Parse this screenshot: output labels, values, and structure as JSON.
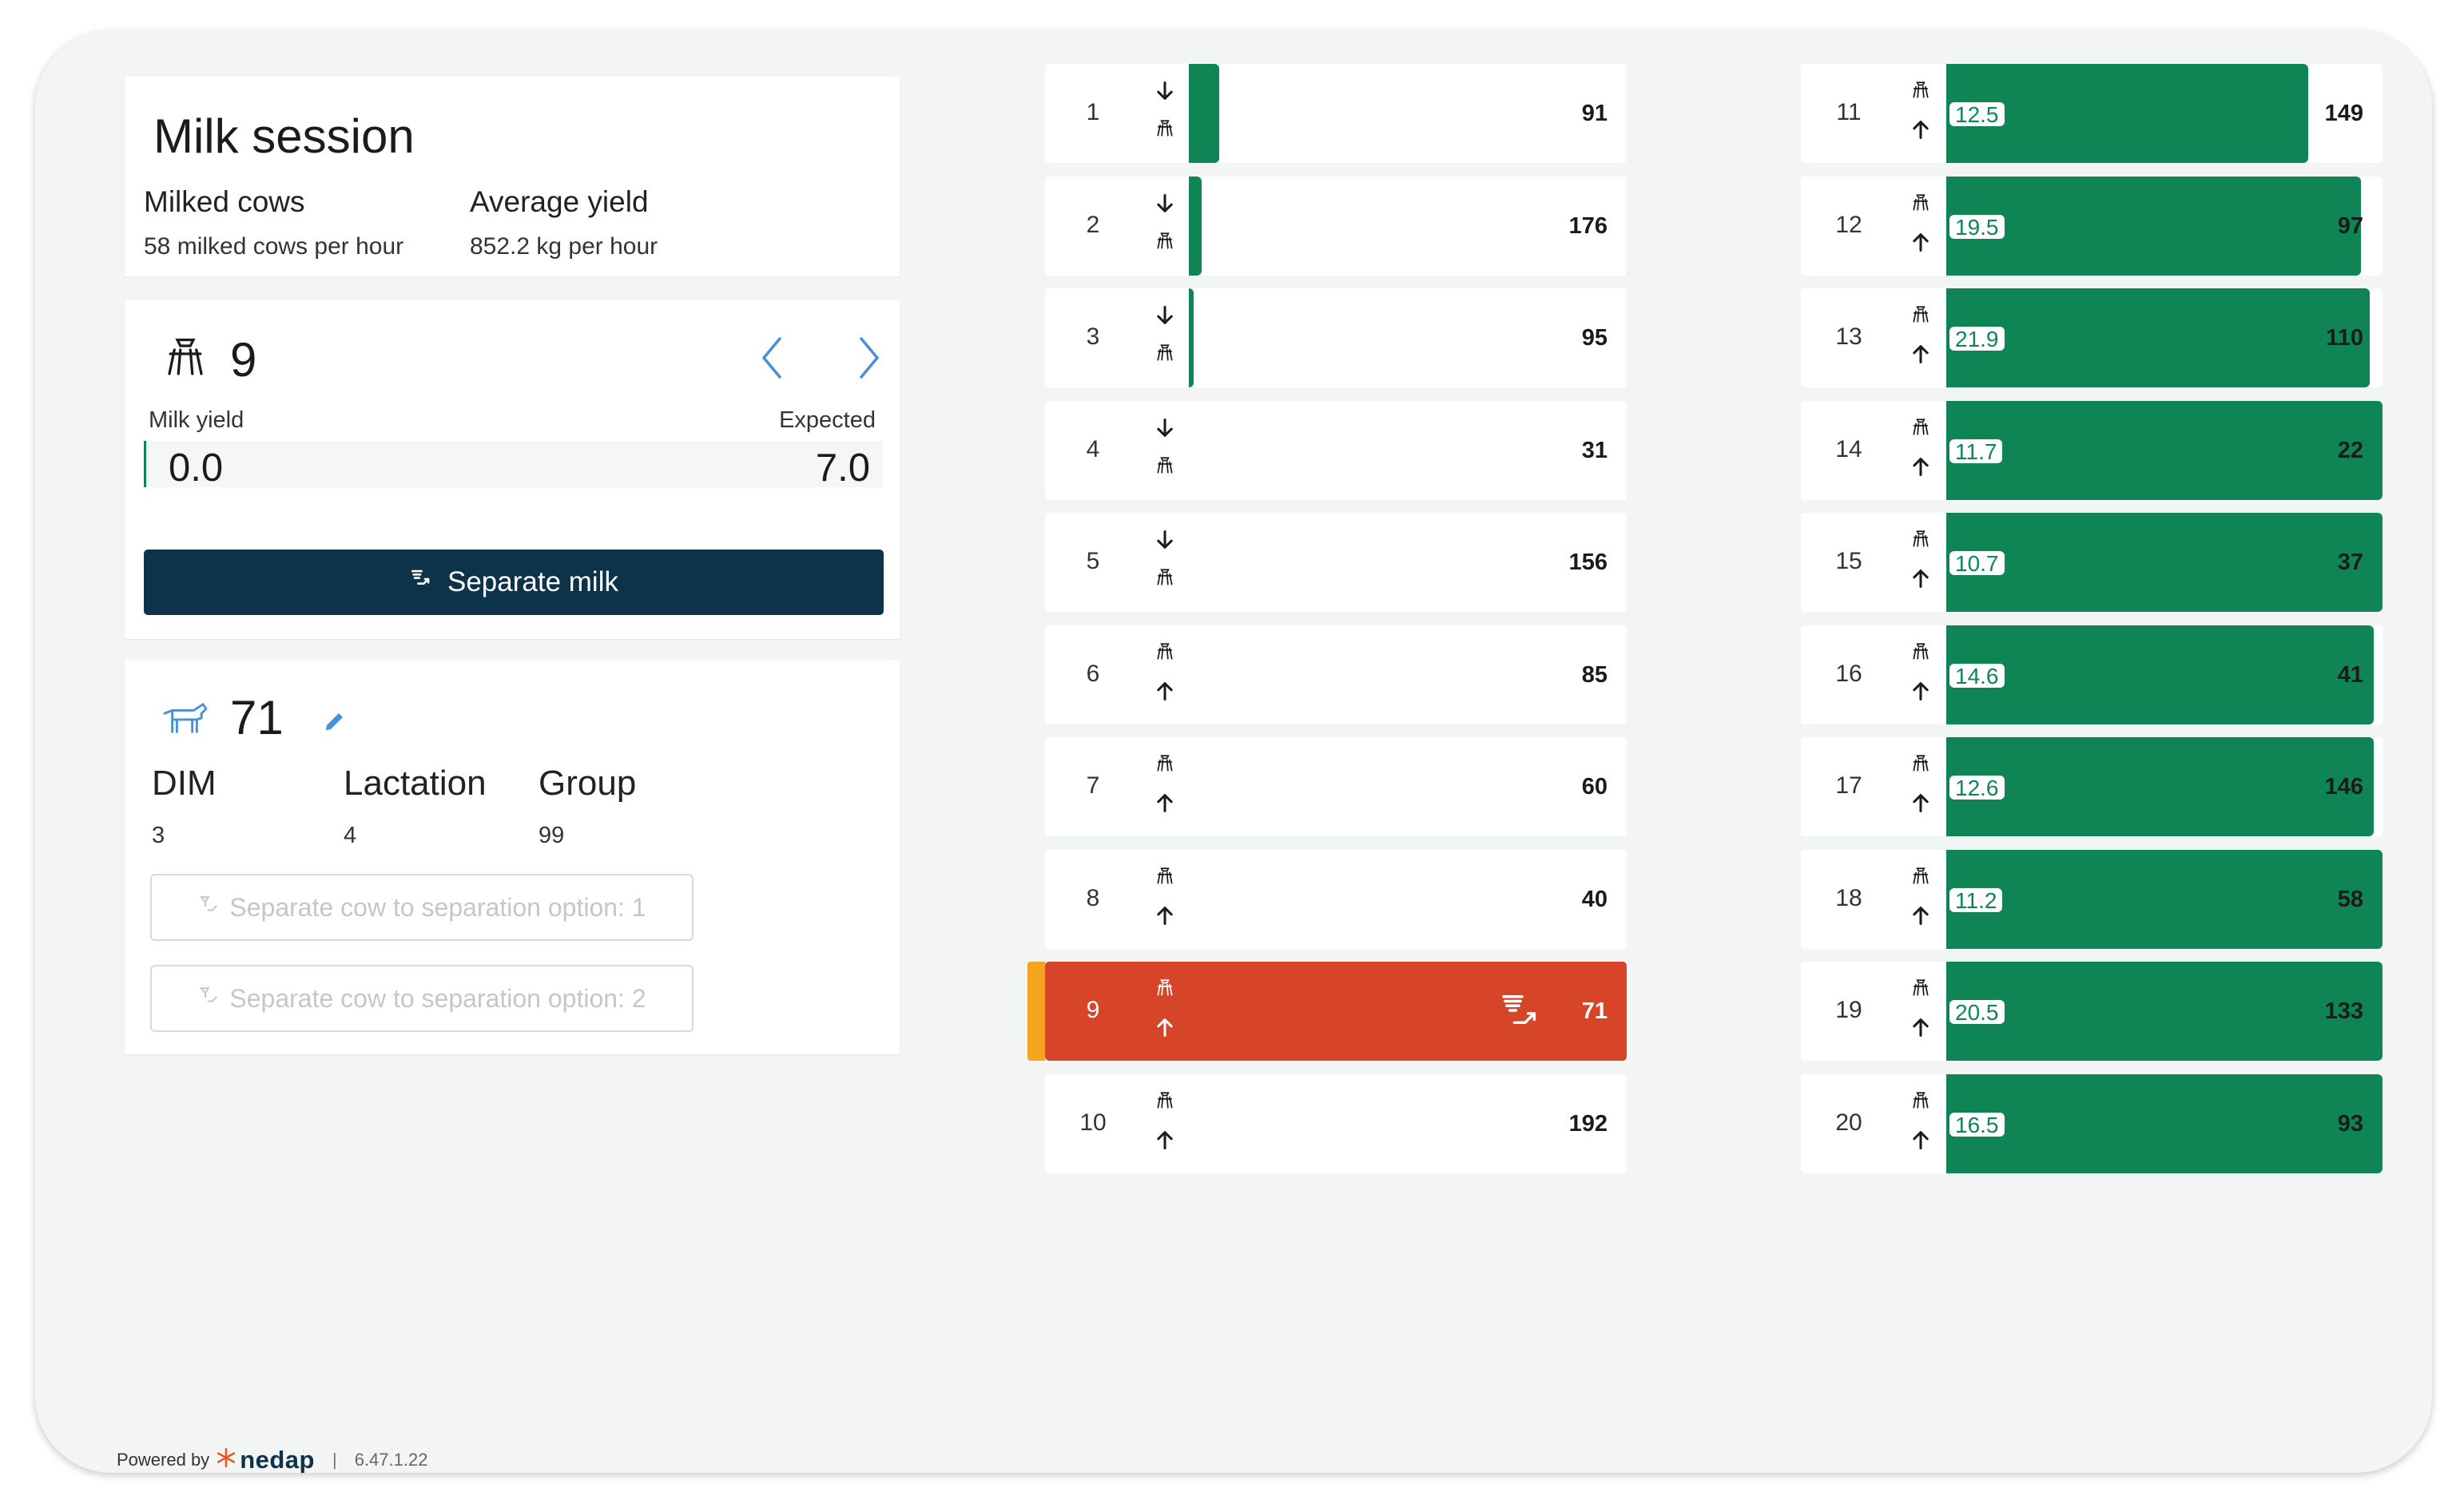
{
  "session": {
    "title": "Milk session",
    "milked_label": "Milked cows",
    "milked_value": "58 milked cows per hour",
    "avg_label": "Average yield",
    "avg_value": "852.2 kg per hour"
  },
  "stall": {
    "number": "9",
    "milk_yield_label": "Milk yield",
    "expected_label": "Expected",
    "milk_yield": "0.0",
    "expected": "7.0",
    "separate_label": "Separate milk"
  },
  "cow": {
    "number": "71",
    "dim_label": "DIM",
    "dim_value": "3",
    "lactation_label": "Lactation",
    "lactation_value": "4",
    "group_label": "Group",
    "group_value": "99",
    "option1_label": "Separate cow to separation option: 1",
    "option2_label": "Separate cow to separation option: 2"
  },
  "stalls_left": [
    {
      "num": "1",
      "cow": "91",
      "direction": "down",
      "progress": 0.07
    },
    {
      "num": "2",
      "cow": "176",
      "direction": "down",
      "progress": 0.03
    },
    {
      "num": "3",
      "cow": "95",
      "direction": "down",
      "progress": 0.01
    },
    {
      "num": "4",
      "cow": "31",
      "direction": "down",
      "progress": 0
    },
    {
      "num": "5",
      "cow": "156",
      "direction": "down",
      "progress": 0
    },
    {
      "num": "6",
      "cow": "85",
      "direction": "up",
      "progress": 0
    },
    {
      "num": "7",
      "cow": "60",
      "direction": "up",
      "progress": 0
    },
    {
      "num": "8",
      "cow": "40",
      "direction": "up",
      "progress": 0
    },
    {
      "num": "9",
      "cow": "71",
      "direction": "up",
      "progress": 0,
      "active": true
    },
    {
      "num": "10",
      "cow": "192",
      "direction": "up",
      "progress": 0
    }
  ],
  "stalls_right": [
    {
      "num": "11",
      "cow": "149",
      "yield": "12.5",
      "progress": 0.83
    },
    {
      "num": "12",
      "cow": "97",
      "yield": "19.5",
      "progress": 0.95
    },
    {
      "num": "13",
      "cow": "110",
      "yield": "21.9",
      "progress": 0.97
    },
    {
      "num": "14",
      "cow": "22",
      "yield": "11.7",
      "progress": 1.0
    },
    {
      "num": "15",
      "cow": "37",
      "yield": "10.7",
      "progress": 1.0
    },
    {
      "num": "16",
      "cow": "41",
      "yield": "14.6",
      "progress": 0.98
    },
    {
      "num": "17",
      "cow": "146",
      "yield": "12.6",
      "progress": 0.98
    },
    {
      "num": "18",
      "cow": "58",
      "yield": "11.2",
      "progress": 1.0
    },
    {
      "num": "19",
      "cow": "133",
      "yield": "20.5",
      "progress": 1.0
    },
    {
      "num": "20",
      "cow": "93",
      "yield": "16.5",
      "progress": 1.0
    }
  ],
  "footer": {
    "powered_by": "Powered by",
    "brand": "nedap",
    "separator": "|",
    "version": "6.47.1.22"
  },
  "colors": {
    "progress_green": "#0f8555",
    "active_red": "#d64527",
    "active_marker": "#f5a41d",
    "button_navy": "#0c3349",
    "accent_blue": "#4a90d9"
  },
  "icons": {
    "milking_cluster": "milking-cluster-icon",
    "down_arrow": "arrow-down-icon",
    "up_arrow": "arrow-up-icon",
    "separate": "separate-milk-icon",
    "cow": "cow-icon",
    "edit": "pencil-icon"
  }
}
